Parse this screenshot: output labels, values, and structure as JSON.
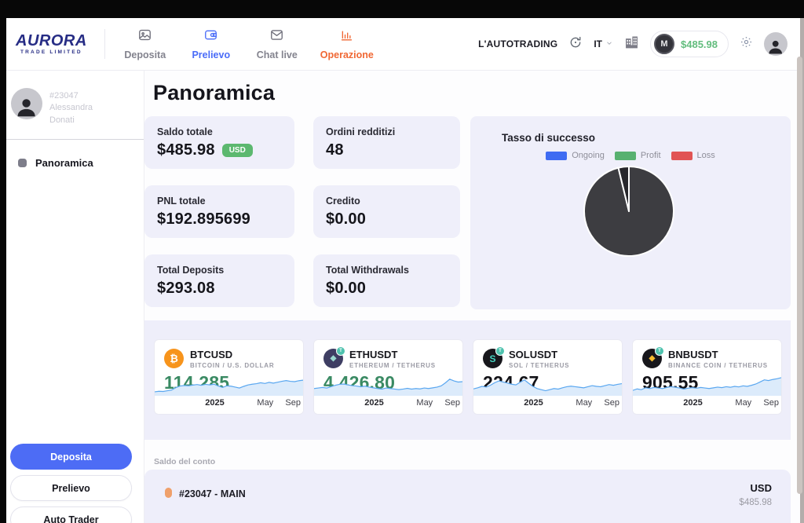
{
  "header": {
    "logo_title": "AURORA",
    "logo_subtitle": "TRADE LIMITED",
    "nav": [
      {
        "label": "Deposita"
      },
      {
        "label": "Prelievo"
      },
      {
        "label": "Chat live"
      },
      {
        "label": "Operazione"
      }
    ],
    "autotrading_label": "L'AUTOTRADING",
    "language": "IT",
    "coin_letter": "M",
    "balance": "$485.98"
  },
  "sidebar": {
    "profile_id": "#23047",
    "profile_first": "Alessandra",
    "profile_last": "Donati",
    "menu_panoramica": "Panoramica",
    "btn_deposit": "Deposita",
    "btn_withdraw": "Prelievo",
    "btn_autotrader": "Auto Trader"
  },
  "main": {
    "title": "Panoramica",
    "stats": [
      {
        "label": "Saldo totale",
        "value": "$485.98",
        "badge": "USD"
      },
      {
        "label": "Ordini redditizi",
        "value": "48"
      },
      {
        "label": "PNL totale",
        "value": "$192.895699"
      },
      {
        "label": "Credito",
        "value": "$0.00"
      },
      {
        "label": "Total Deposits",
        "value": "$293.08"
      },
      {
        "label": "Total Withdrawals",
        "value": "$0.00"
      }
    ],
    "success_title": "Tasso di successo",
    "tickers": [
      {
        "symbol": "BTCUSD",
        "pair": "BITCOIN / U.S. DOLLAR",
        "price": "114,285",
        "price_class": "green",
        "coin_glyph": "₿"
      },
      {
        "symbol": "ETHUSDT",
        "pair": "ETHEREUM / TETHERUS",
        "price": "4,426.80",
        "price_class": "green",
        "coin_glyph": "◆"
      },
      {
        "symbol": "SOLUSDT",
        "pair": "SOL / TETHERUS",
        "price": "224.67",
        "price_class": "dark",
        "coin_glyph": "S"
      },
      {
        "symbol": "BNBUSDT",
        "pair": "BINANCE COIN / TETHERUS",
        "price": "905.55",
        "price_class": "dark",
        "coin_glyph": "◆"
      }
    ],
    "tether_badge": "T",
    "balance_section_title": "Saldo del conto",
    "account_label": "#23047 - MAIN",
    "account_currency": "USD",
    "account_amount": "$485.98"
  },
  "chart_data": [
    {
      "type": "pie",
      "title": "Tasso di successo",
      "legend": [
        {
          "label": "Ongoing",
          "color": "#3f6cf2"
        },
        {
          "label": "Profit",
          "color": "#58b170"
        },
        {
          "label": "Loss",
          "color": "#e15454"
        }
      ],
      "slices": [
        {
          "fraction": 0.962,
          "color": "#3d3d41"
        },
        {
          "fraction": 0.038,
          "color": "#26262b"
        }
      ]
    },
    {
      "type": "area",
      "x_labels": [
        "2025",
        "May",
        "Sep"
      ],
      "line_color": "#5aa7f0",
      "fill_color": "#dcebfb",
      "series": [
        {
          "name": "BTCUSD",
          "points": [
            0.12,
            0.15,
            0.14,
            0.18,
            0.22,
            0.35,
            0.44,
            0.47,
            0.45,
            0.49,
            0.52,
            0.48,
            0.53,
            0.5,
            0.54,
            0.44,
            0.36,
            0.45,
            0.43,
            0.38,
            0.33,
            0.42,
            0.5,
            0.54,
            0.57,
            0.62,
            0.58,
            0.64,
            0.6,
            0.65,
            0.7,
            0.74,
            0.7,
            0.68,
            0.73,
            0.76
          ]
        },
        {
          "name": "ETHUSDT",
          "points": [
            0.3,
            0.33,
            0.36,
            0.33,
            0.4,
            0.48,
            0.53,
            0.55,
            0.5,
            0.46,
            0.44,
            0.4,
            0.43,
            0.38,
            0.34,
            0.3,
            0.27,
            0.33,
            0.3,
            0.27,
            0.24,
            0.27,
            0.31,
            0.27,
            0.3,
            0.28,
            0.33,
            0.3,
            0.34,
            0.38,
            0.45,
            0.62,
            0.82,
            0.72,
            0.66,
            0.68
          ]
        },
        {
          "name": "SOLUSDT",
          "points": [
            0.28,
            0.34,
            0.42,
            0.38,
            0.48,
            0.62,
            0.72,
            0.66,
            0.6,
            0.54,
            0.5,
            0.64,
            0.78,
            0.6,
            0.42,
            0.3,
            0.24,
            0.18,
            0.24,
            0.3,
            0.27,
            0.34,
            0.4,
            0.43,
            0.4,
            0.37,
            0.34,
            0.4,
            0.46,
            0.42,
            0.4,
            0.46,
            0.52,
            0.48,
            0.53,
            0.57
          ]
        },
        {
          "name": "BNBUSDT",
          "points": [
            0.2,
            0.28,
            0.24,
            0.34,
            0.3,
            0.36,
            0.33,
            0.3,
            0.36,
            0.4,
            0.37,
            0.33,
            0.27,
            0.32,
            0.35,
            0.32,
            0.36,
            0.33,
            0.3,
            0.34,
            0.38,
            0.35,
            0.4,
            0.37,
            0.42,
            0.39,
            0.45,
            0.42,
            0.48,
            0.55,
            0.66,
            0.78,
            0.74,
            0.8,
            0.84,
            0.9
          ]
        }
      ]
    }
  ]
}
